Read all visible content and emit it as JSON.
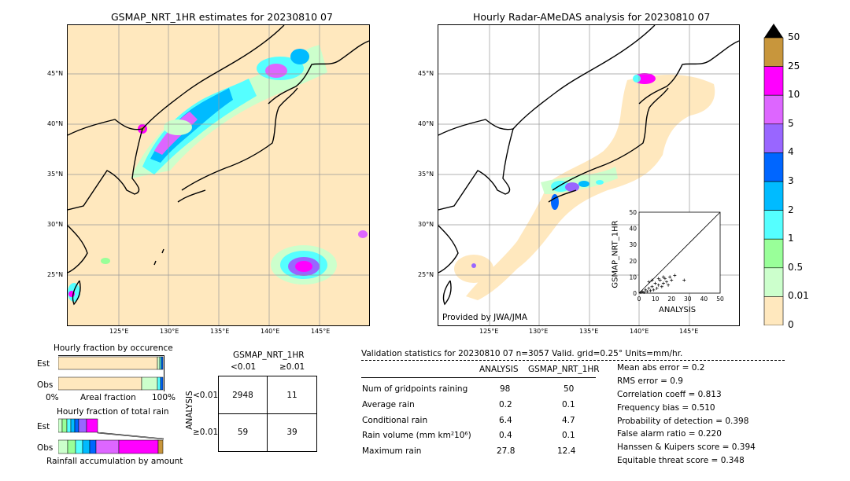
{
  "left_map": {
    "title": "GSMAP_NRT_1HR estimates for 20230810 07",
    "lat_labels": [
      "45°N",
      "40°N",
      "35°N",
      "30°N",
      "25°N"
    ],
    "lon_labels": [
      "125°E",
      "130°E",
      "135°E",
      "140°E",
      "145°E"
    ]
  },
  "right_map": {
    "title": "Hourly Radar-AMeDAS analysis for 20230810 07",
    "lat_labels": [
      "45°N",
      "40°N",
      "35°N",
      "30°N",
      "25°N"
    ],
    "lon_labels": [
      "125°E",
      "130°E",
      "135°E",
      "140°E",
      "145°E"
    ],
    "credit": "Provided by JWA/JMA"
  },
  "colorbar": {
    "labels": [
      "50",
      "25",
      "10",
      "5",
      "4",
      "3",
      "2",
      "1",
      "0.5",
      "0.01",
      "0"
    ],
    "colors": [
      "#c8963c",
      "#ff00ff",
      "#dd66ff",
      "#9966ff",
      "#0066ff",
      "#00bbff",
      "#55ffff",
      "#99ff99",
      "#ccffcc",
      "#ffe8be"
    ]
  },
  "scatter": {
    "ylabel": "GSMAP_NRT_1HR",
    "xlabel": "ANALYSIS",
    "ticks": [
      "0",
      "10",
      "20",
      "30",
      "40",
      "50"
    ]
  },
  "chart_data": {
    "type": "scatter",
    "xlabel": "ANALYSIS",
    "ylabel": "GSMAP_NRT_1HR",
    "xlim": [
      0,
      50
    ],
    "ylim": [
      0,
      50
    ],
    "points": [
      [
        1,
        0.5
      ],
      [
        2,
        1
      ],
      [
        3,
        0.5
      ],
      [
        4,
        2
      ],
      [
        5,
        1
      ],
      [
        6,
        3
      ],
      [
        7,
        1.5
      ],
      [
        8,
        4
      ],
      [
        9,
        2
      ],
      [
        10,
        6
      ],
      [
        11,
        3
      ],
      [
        12,
        5
      ],
      [
        13,
        8
      ],
      [
        14,
        4
      ],
      [
        15,
        6
      ],
      [
        16,
        9
      ],
      [
        17,
        7
      ],
      [
        18,
        5
      ],
      [
        19,
        10
      ],
      [
        20,
        8
      ],
      [
        22,
        11
      ],
      [
        27.8,
        8
      ],
      [
        6,
        7
      ],
      [
        8,
        8
      ],
      [
        12,
        9
      ],
      [
        15,
        10
      ]
    ]
  },
  "fraction_occurrence": {
    "title": "Hourly fraction by occurence",
    "rows": [
      "Est",
      "Obs"
    ],
    "axis_left": "0%",
    "axis_mid": "Areal fraction",
    "axis_right": "100%"
  },
  "fraction_total": {
    "title": "Hourly fraction of total rain",
    "rows": [
      "Est",
      "Obs"
    ],
    "axis_label": "Rainfall accumulation by amount"
  },
  "contingency": {
    "title": "GSMAP_NRT_1HR",
    "col_labels": [
      "<0.01",
      "≥0.01"
    ],
    "row_axis": "ANALYSIS",
    "row_labels": [
      "<0.01",
      "≥0.01"
    ],
    "cells": [
      "2948",
      "11",
      "59",
      "39"
    ]
  },
  "validation": {
    "header": "Validation statistics for 20230810 07  n=3057 Valid. grid=0.25° Units=mm/hr.",
    "col_analysis": "ANALYSIS",
    "col_gsmap": "GSMAP_NRT_1HR",
    "rows": [
      {
        "label": "Num of gridpoints raining",
        "analysis": "98",
        "gsmap": "50"
      },
      {
        "label": "Average rain",
        "analysis": "0.2",
        "gsmap": "0.1"
      },
      {
        "label": "Conditional rain",
        "analysis": "6.4",
        "gsmap": "4.7"
      },
      {
        "label": "Rain volume (mm km²10⁶)",
        "analysis": "0.4",
        "gsmap": "0.1"
      },
      {
        "label": "Maximum rain",
        "analysis": "27.8",
        "gsmap": "12.4"
      }
    ],
    "scores": [
      "Mean abs error =    0.2",
      "RMS error =    0.9",
      "Correlation coeff =  0.813",
      "Frequency bias =  0.510",
      "Probability of detection =  0.398",
      "False alarm ratio =  0.220",
      "Hanssen & Kuipers score =  0.394",
      "Equitable threat score =  0.348"
    ]
  }
}
